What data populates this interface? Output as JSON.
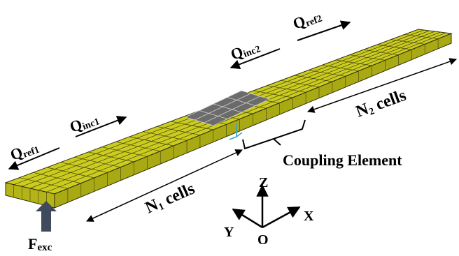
{
  "labels": {
    "q_ref1": {
      "main": "Q",
      "sub": "ref1"
    },
    "q_inc1": {
      "main": "Q",
      "sub": "inc1"
    },
    "q_inc2": {
      "main": "Q",
      "sub": "inc2"
    },
    "q_ref2": {
      "main": "Q",
      "sub": "ref2"
    },
    "n1_cells": {
      "main": "N",
      "sub": "1",
      "rest": " cells"
    },
    "n2_cells": {
      "main": "N",
      "sub": "2",
      "rest": " cells"
    },
    "coupling_element": "Coupling Element",
    "f_exc": {
      "main": "F",
      "sub": "exc"
    }
  },
  "axes": {
    "z": "Z",
    "x": "X",
    "y": "Y",
    "origin": "O"
  },
  "colors": {
    "plate_top": "#cccc1f",
    "plate_side": "#a9a914",
    "grid_line": "#3f3f12",
    "patch": "#6b6b6b",
    "force_arrow": "#3f4b5c"
  }
}
